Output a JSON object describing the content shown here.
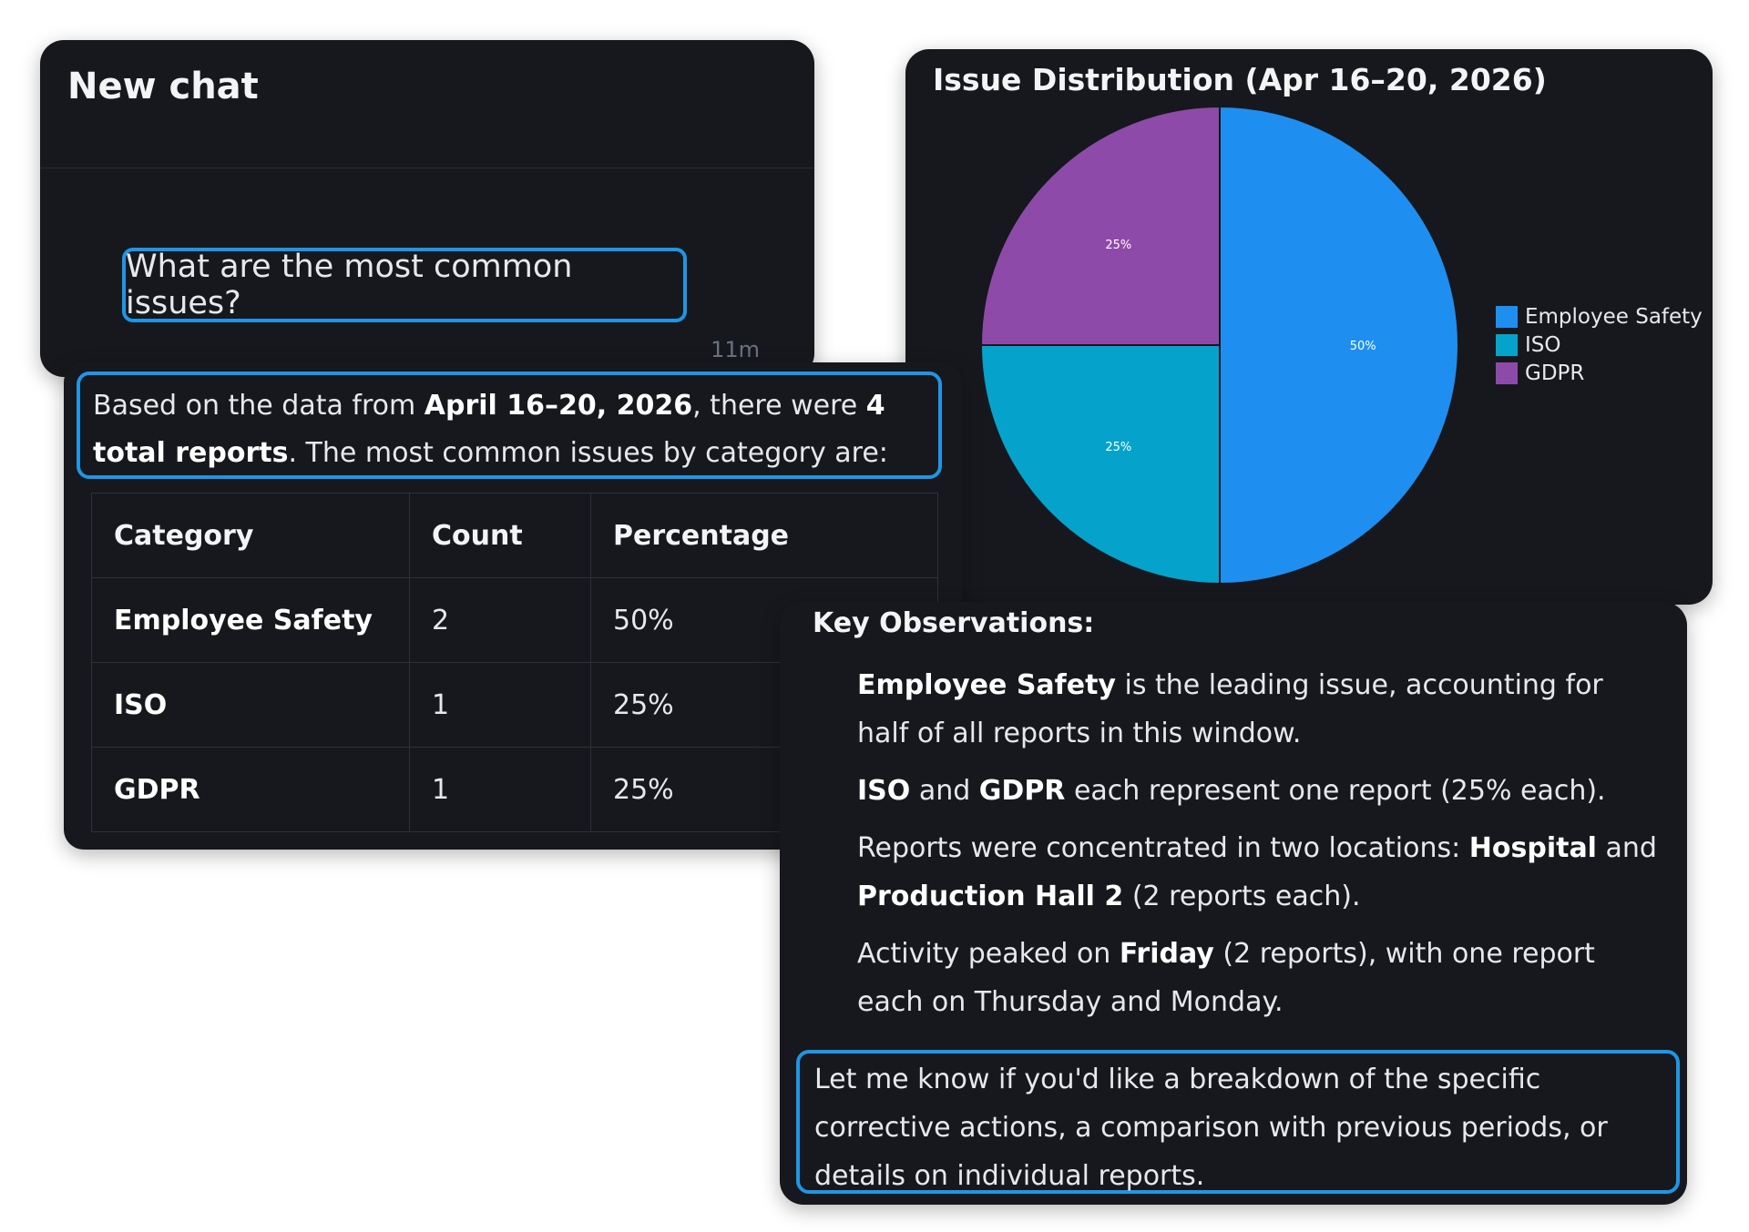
{
  "chat": {
    "title": "New chat",
    "user_message": "What are the most common issues?",
    "time": "11m"
  },
  "answer": {
    "intro_prefix": "Based on the data from ",
    "intro_date": "April 16–20, 2026",
    "intro_mid": ", there were ",
    "intro_count": "4 total reports",
    "intro_suffix": ". The most common issues by category are:",
    "table": {
      "headers": [
        "Category",
        "Count",
        "Percentage"
      ],
      "rows": [
        [
          "Employee Safety",
          "2",
          "50%"
        ],
        [
          "ISO",
          "1",
          "25%"
        ],
        [
          "GDPR",
          "1",
          "25%"
        ]
      ]
    }
  },
  "chart_data": {
    "type": "pie",
    "title": "Issue Distribution (Apr 16–20, 2026)",
    "labels": [
      "Employee Safety",
      "ISO",
      "GDPR"
    ],
    "values": [
      50,
      25,
      25
    ],
    "value_labels": [
      "50%",
      "25%",
      "25%"
    ],
    "colors": [
      "#1e8ff0",
      "#05a3cc",
      "#8e4aa8"
    ],
    "legend": "right"
  },
  "observations": {
    "title": "Key Observations:",
    "items": [
      {
        "bold1": "Employee Safety",
        "text1": " is the leading issue, accounting for half of all reports in this window."
      },
      {
        "bold1": "ISO",
        "text1": " and ",
        "bold2": "GDPR",
        "text2": " each represent one report (25% each)."
      },
      {
        "text0": "Reports were concentrated in two locations: ",
        "bold1": "Hospital",
        "text1": " and ",
        "bold2": "Production Hall 2",
        "text2": " (2 reports each)."
      },
      {
        "text0": "Activity peaked on ",
        "bold1": "Friday",
        "text1": " (2 reports), with one report each on Thursday and Monday."
      }
    ],
    "followup": "Let me know if you'd like a breakdown of the specific corrective actions, a comparison with previous periods, or details on individual reports."
  }
}
